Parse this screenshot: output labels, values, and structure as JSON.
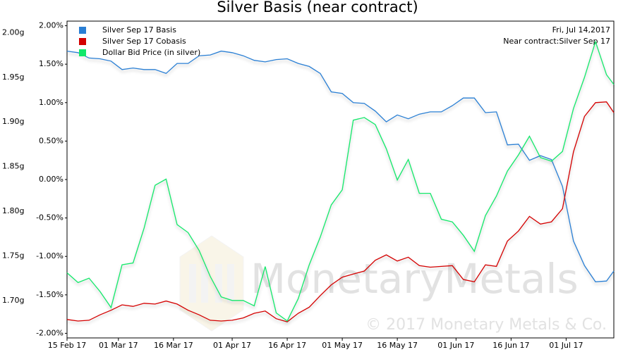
{
  "chart_data": {
    "type": "line",
    "title": "Silver Basis (near contract)",
    "annotations": [
      "Fri, Jul 14,2017",
      "Near contract:Silver Sep 17"
    ],
    "watermark": [
      "MonetaryMetals",
      "© 2017 Monetary Metals & Co."
    ],
    "x": [
      "2017-02-15",
      "2017-02-18",
      "2017-02-21",
      "2017-02-24",
      "2017-02-27",
      "2017-03-02",
      "2017-03-05",
      "2017-03-08",
      "2017-03-11",
      "2017-03-14",
      "2017-03-17",
      "2017-03-20",
      "2017-03-23",
      "2017-03-26",
      "2017-03-29",
      "2017-04-01",
      "2017-04-04",
      "2017-04-07",
      "2017-04-10",
      "2017-04-13",
      "2017-04-16",
      "2017-04-19",
      "2017-04-22",
      "2017-04-25",
      "2017-04-28",
      "2017-05-01",
      "2017-05-04",
      "2017-05-07",
      "2017-05-10",
      "2017-05-13",
      "2017-05-16",
      "2017-05-19",
      "2017-05-22",
      "2017-05-25",
      "2017-05-28",
      "2017-05-31",
      "2017-06-03",
      "2017-06-06",
      "2017-06-09",
      "2017-06-12",
      "2017-06-15",
      "2017-06-18",
      "2017-06-21",
      "2017-06-24",
      "2017-06-27",
      "2017-06-30",
      "2017-07-03",
      "2017-07-06",
      "2017-07-09",
      "2017-07-12",
      "2017-07-14"
    ],
    "xlim": [
      "2017-02-15",
      "2017-07-14"
    ],
    "xticks": [
      {
        "value": "2017-02-15",
        "label": "15 Feb 17"
      },
      {
        "value": "2017-03-01",
        "label": "01 Mar 17"
      },
      {
        "value": "2017-03-16",
        "label": "16 Mar 17"
      },
      {
        "value": "2017-04-01",
        "label": "01 Apr 17"
      },
      {
        "value": "2017-04-16",
        "label": "16 Apr 17"
      },
      {
        "value": "2017-05-01",
        "label": "01 May 17"
      },
      {
        "value": "2017-05-16",
        "label": "16 May 17"
      },
      {
        "value": "2017-06-01",
        "label": "01 Jun 17"
      },
      {
        "value": "2017-06-16",
        "label": "16 Jun 17"
      },
      {
        "value": "2017-07-01",
        "label": "01 Jul 17"
      }
    ],
    "ylim": [
      -2.06,
      2.06
    ],
    "yticks": [
      {
        "value": 2,
        "label": "2.00%"
      },
      {
        "value": 1.5,
        "label": "1.50%"
      },
      {
        "value": 1,
        "label": "1.00%"
      },
      {
        "value": 0.5,
        "label": "0.50%"
      },
      {
        "value": 0,
        "label": "0.00%"
      },
      {
        "value": -0.5,
        "label": "-0.50%"
      },
      {
        "value": -1,
        "label": "-1.00%"
      },
      {
        "value": -1.5,
        "label": "-1.50%"
      },
      {
        "value": -2,
        "label": "-2.00%"
      }
    ],
    "y2lim": [
      1.658,
      2.013
    ],
    "y2ticks": [
      {
        "value": 2,
        "label": "2.00g"
      },
      {
        "value": 1.95,
        "label": "1.95g"
      },
      {
        "value": 1.9,
        "label": "1.90g"
      },
      {
        "value": 1.85,
        "label": "1.85g"
      },
      {
        "value": 1.8,
        "label": "1.80g"
      },
      {
        "value": 1.75,
        "label": "1.75g"
      },
      {
        "value": 1.7,
        "label": "1.70g"
      }
    ],
    "y2color": "#1a6e1a",
    "legend": "top-left",
    "series": [
      {
        "name": "Silver Sep 17 Basis",
        "color": "#2a7fd4",
        "values": [
          1.67,
          1.65,
          1.58,
          1.57,
          1.54,
          1.43,
          1.45,
          1.43,
          1.43,
          1.38,
          1.51,
          1.51,
          1.61,
          1.62,
          1.67,
          1.65,
          1.61,
          1.55,
          1.53,
          1.56,
          1.57,
          1.51,
          1.47,
          1.38,
          1.14,
          1.12,
          1.0,
          0.99,
          0.89,
          0.75,
          0.84,
          0.79,
          0.85,
          0.88,
          0.88,
          0.96,
          1.06,
          1.06,
          0.87,
          0.88,
          0.45,
          0.46,
          0.25,
          0.31,
          0.26,
          -0.09,
          -0.8,
          -1.12,
          -1.33,
          -1.32,
          -1.19
        ]
      },
      {
        "name": "Silver Sep 17 Cobasis",
        "color": "#d40000",
        "values": [
          -1.82,
          -1.84,
          -1.83,
          -1.76,
          -1.7,
          -1.63,
          -1.65,
          -1.61,
          -1.62,
          -1.58,
          -1.62,
          -1.7,
          -1.76,
          -1.83,
          -1.84,
          -1.83,
          -1.8,
          -1.74,
          -1.71,
          -1.81,
          -1.85,
          -1.74,
          -1.66,
          -1.51,
          -1.37,
          -1.27,
          -1.23,
          -1.19,
          -1.05,
          -0.98,
          -1.06,
          -1.01,
          -1.12,
          -1.14,
          -1.13,
          -1.12,
          -1.3,
          -1.33,
          -1.11,
          -1.13,
          -0.8,
          -0.67,
          -0.48,
          -0.58,
          -0.55,
          -0.38,
          0.36,
          0.82,
          1.0,
          1.01,
          0.87
        ]
      },
      {
        "name": "Dollar Bid Price (in silver)",
        "color": "#12e86a",
        "axis": "y2",
        "values": [
          1.731,
          1.72,
          1.725,
          1.71,
          1.692,
          1.74,
          1.742,
          1.781,
          1.829,
          1.836,
          1.785,
          1.776,
          1.756,
          1.727,
          1.704,
          1.7,
          1.7,
          1.694,
          1.738,
          1.686,
          1.677,
          1.702,
          1.74,
          1.771,
          1.807,
          1.824,
          1.902,
          1.905,
          1.897,
          1.87,
          1.835,
          1.858,
          1.82,
          1.82,
          1.791,
          1.788,
          1.773,
          1.755,
          1.795,
          1.817,
          1.845,
          1.863,
          1.884,
          1.86,
          1.856,
          1.867,
          1.915,
          1.95,
          1.99,
          1.953,
          1.942
        ]
      }
    ]
  }
}
